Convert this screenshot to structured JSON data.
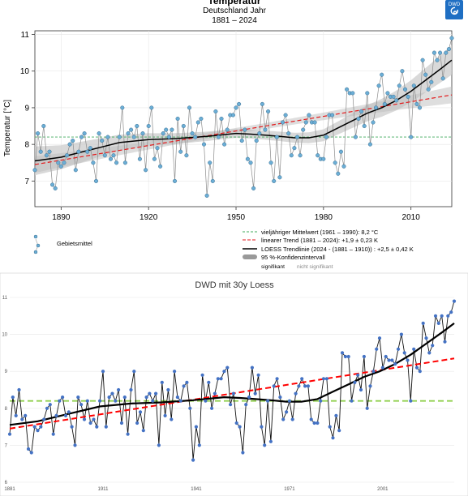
{
  "chart_data": [
    {
      "type": "line",
      "title": "Temperatur",
      "subtitle": "Deutschland Jahr",
      "period": "1881 – 2024",
      "logo_text": "DWD",
      "ylabel": "Temperatur [°C]",
      "xlim": [
        1881,
        2024
      ],
      "ylim": [
        6.3,
        11.1
      ],
      "xticks": [
        1890,
        1920,
        1950,
        1980,
        2010
      ],
      "yticks": [
        7,
        8,
        9,
        10,
        11
      ],
      "grid": true,
      "legend_placement": "bottom",
      "x": [
        1881,
        1882,
        1883,
        1884,
        1885,
        1886,
        1887,
        1888,
        1889,
        1890,
        1891,
        1892,
        1893,
        1894,
        1895,
        1896,
        1897,
        1898,
        1899,
        1900,
        1901,
        1902,
        1903,
        1904,
        1905,
        1906,
        1907,
        1908,
        1909,
        1910,
        1911,
        1912,
        1913,
        1914,
        1915,
        1916,
        1917,
        1918,
        1919,
        1920,
        1921,
        1922,
        1923,
        1924,
        1925,
        1926,
        1927,
        1928,
        1929,
        1930,
        1931,
        1932,
        1933,
        1934,
        1935,
        1936,
        1937,
        1938,
        1939,
        1940,
        1941,
        1942,
        1943,
        1944,
        1945,
        1946,
        1947,
        1948,
        1949,
        1950,
        1951,
        1952,
        1953,
        1954,
        1955,
        1956,
        1957,
        1958,
        1959,
        1960,
        1961,
        1962,
        1963,
        1964,
        1965,
        1966,
        1967,
        1968,
        1969,
        1970,
        1971,
        1972,
        1973,
        1974,
        1975,
        1976,
        1977,
        1978,
        1979,
        1980,
        1981,
        1982,
        1983,
        1984,
        1985,
        1986,
        1987,
        1988,
        1989,
        1990,
        1991,
        1992,
        1993,
        1994,
        1995,
        1996,
        1997,
        1998,
        1999,
        2000,
        2001,
        2002,
        2003,
        2004,
        2005,
        2006,
        2007,
        2008,
        2009,
        2010,
        2011,
        2012,
        2013,
        2014,
        2015,
        2016,
        2017,
        2018,
        2019,
        2020,
        2021,
        2022,
        2023,
        2024
      ],
      "series": [
        {
          "name": "Gebietsmittel",
          "color": "#6baed6",
          "style": "points",
          "values": [
            7.3,
            8.3,
            7.8,
            8.5,
            7.7,
            7.8,
            6.9,
            6.8,
            7.5,
            7.4,
            7.5,
            7.7,
            8.0,
            8.1,
            7.3,
            7.8,
            8.2,
            8.3,
            7.8,
            7.9,
            7.5,
            7.0,
            8.3,
            8.1,
            7.7,
            8.2,
            7.6,
            7.7,
            7.5,
            8.2,
            9.0,
            7.5,
            8.3,
            8.4,
            8.2,
            8.5,
            7.6,
            8.3,
            7.3,
            8.5,
            9.0,
            7.6,
            7.9,
            7.4,
            8.3,
            8.4,
            8.2,
            8.4,
            7.0,
            8.7,
            7.8,
            8.5,
            7.7,
            9.0,
            8.3,
            8.2,
            8.6,
            8.7,
            8.0,
            6.6,
            7.5,
            7.0,
            8.9,
            8.2,
            8.7,
            8.0,
            8.4,
            8.8,
            8.8,
            9.0,
            9.1,
            8.1,
            8.4,
            7.6,
            7.5,
            6.8,
            8.1,
            8.3,
            9.1,
            8.4,
            8.9,
            7.5,
            7.0,
            8.2,
            7.1,
            8.6,
            8.8,
            8.3,
            7.7,
            7.9,
            8.2,
            7.7,
            8.4,
            8.6,
            8.8,
            8.6,
            8.6,
            7.7,
            7.6,
            7.6,
            8.2,
            8.8,
            8.8,
            7.5,
            7.2,
            7.8,
            7.4,
            9.5,
            9.4,
            9.4,
            8.2,
            8.7,
            8.9,
            8.5,
            9.4,
            8.0,
            8.6,
            9.0,
            9.6,
            9.9,
            9.1,
            9.4,
            9.3,
            9.3,
            9.2,
            9.6,
            10.0,
            9.5,
            9.3,
            8.2,
            9.6,
            9.1,
            9.0,
            10.3,
            9.9,
            9.5,
            9.7,
            10.5,
            10.3,
            10.5,
            9.8,
            10.5,
            10.6,
            10.9
          ]
        },
        {
          "name": "vieljähriger Mittelwert (1961 – 1990): 8,2 °C",
          "color": "#41ab5d",
          "style": "dashed",
          "value": 8.2
        },
        {
          "name": "linearer Trend (1881 – 2024): +1,9 ± 0,23 K",
          "color": "#e31a1c",
          "style": "dashed",
          "x": [
            1881,
            2024
          ],
          "values": [
            7.45,
            9.35
          ]
        },
        {
          "name": "LOESS Trendlinie (2024 - (1881 – 1910)) : +2,5 ± 0,42 K",
          "color": "#000000",
          "style": "solid",
          "x": [
            1881,
            1890,
            1900,
            1910,
            1920,
            1930,
            1940,
            1950,
            1955,
            1960,
            1965,
            1970,
            1975,
            1980,
            1985,
            1990,
            1995,
            2000,
            2005,
            2010,
            2015,
            2020,
            2024
          ],
          "values": [
            7.55,
            7.65,
            7.85,
            8.05,
            8.13,
            8.16,
            8.22,
            8.3,
            8.28,
            8.25,
            8.22,
            8.18,
            8.18,
            8.25,
            8.45,
            8.65,
            8.85,
            9.0,
            9.2,
            9.45,
            9.75,
            10.05,
            10.3
          ]
        },
        {
          "name": "95 %-Konfidenzintervall",
          "color": "#bdbdbd",
          "style": "band"
        }
      ],
      "legend_notes": [
        "signifikant",
        "nicht signifikant"
      ]
    },
    {
      "type": "line",
      "title": "DWD mit 30y Loess",
      "xlim": [
        1881,
        2024
      ],
      "ylim": [
        6,
        11
      ],
      "xticks": [
        1881,
        1911,
        1941,
        1971,
        2001
      ],
      "yticks": [
        6,
        7,
        8,
        9,
        10,
        11
      ],
      "series": [
        {
          "name": "",
          "color": "#4472c4",
          "style": "line-markers",
          "ref": "chart1"
        },
        {
          "name": "",
          "color": "#92d050",
          "style": "dashed",
          "value": 8.2
        },
        {
          "name": "",
          "color": "#ff0000",
          "style": "dashed",
          "x": [
            1881,
            2024
          ],
          "values": [
            7.45,
            9.35
          ]
        },
        {
          "name": "",
          "color": "#000000",
          "style": "solid",
          "ref": "chart1-loess"
        }
      ]
    }
  ]
}
